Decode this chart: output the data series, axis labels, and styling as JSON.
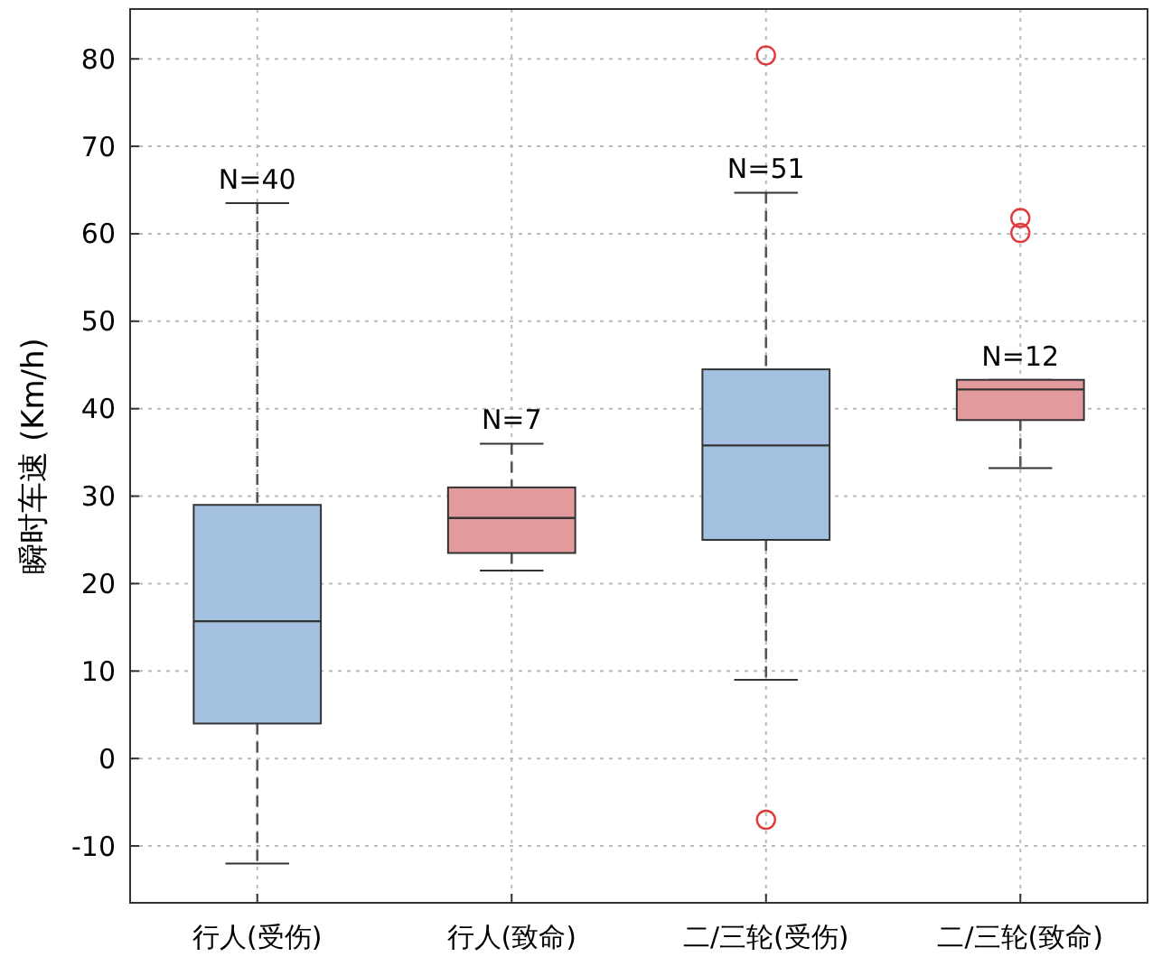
{
  "chart_data": {
    "type": "box",
    "ylabel": "瞬时车速 (Km/h)",
    "categories": [
      "行人(受伤)",
      "行人(致命)",
      "二/三轮(受伤)",
      "二/三轮(致命)"
    ],
    "colors": [
      "#a3c0e0",
      "#e39a9c",
      "#a3c0e0",
      "#e39a9c"
    ],
    "boxes": [
      {
        "low": -12,
        "q1": 4,
        "median": 15.7,
        "q3": 29,
        "high": 63.5
      },
      {
        "low": 21.5,
        "q1": 23.5,
        "median": 27.5,
        "q3": 31,
        "high": 36
      },
      {
        "low": 9,
        "q1": 25,
        "median": 35.8,
        "q3": 44.5,
        "high": 64.7,
        "outliers": [
          80.4,
          -7
        ]
      },
      {
        "low": 33.2,
        "q1": 38.7,
        "median": 42.2,
        "q3": 43.3,
        "high": 43.3,
        "outliers": [
          61.8,
          60.1
        ]
      }
    ],
    "annotations": [
      "N=40",
      "N=7",
      "N=51",
      "N=12"
    ],
    "ylim": [
      -16.5,
      85.7
    ],
    "yticks": [
      -10,
      0,
      10,
      20,
      30,
      40,
      50,
      60,
      70,
      80
    ],
    "grid": true
  }
}
